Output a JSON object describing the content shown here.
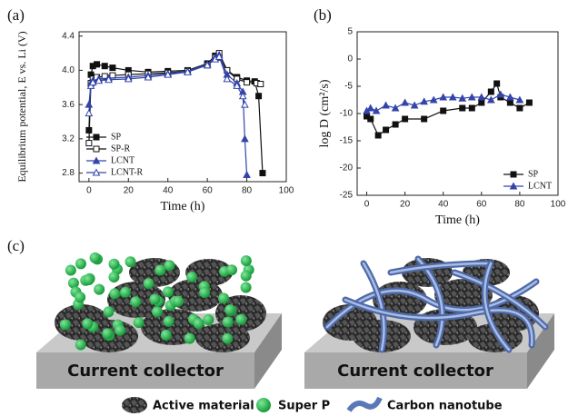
{
  "chart_data": [
    {
      "type": "line",
      "label": "(a)",
      "x_label": "Time (h)",
      "y_label": "Equilibrium potential, E vs. Li (V)",
      "xlim": [
        -5,
        100
      ],
      "xticks": [
        0,
        20,
        40,
        60,
        80,
        100
      ],
      "ylim": [
        2.7,
        4.45
      ],
      "yticks": [
        2.8,
        3.2,
        3.6,
        {
          "value": 4,
          "label": "4.0"
        },
        4.4
      ],
      "legend": "lower left",
      "series": [
        {
          "name": "SP",
          "color": "#111111",
          "marker": "square",
          "filled": true,
          "x": [
            0,
            1,
            2,
            4,
            8,
            12,
            20,
            30,
            40,
            50,
            60,
            64,
            66,
            70,
            75,
            80,
            84,
            86,
            88
          ],
          "values": [
            3.3,
            3.95,
            4.05,
            4.07,
            4.05,
            4.03,
            4.0,
            3.98,
            3.99,
            4.0,
            4.08,
            4.17,
            4.15,
            4.0,
            3.92,
            3.88,
            3.87,
            3.7,
            2.8
          ]
        },
        {
          "name": "SP-R",
          "color": "#111111",
          "marker": "square",
          "filled": false,
          "x": [
            0,
            1,
            2,
            4,
            8,
            12,
            20,
            30,
            40,
            50,
            60,
            64,
            66,
            70,
            75,
            80,
            85,
            87
          ],
          "values": [
            3.15,
            3.85,
            3.9,
            3.92,
            3.93,
            3.94,
            3.95,
            3.96,
            3.97,
            3.99,
            4.06,
            4.15,
            4.2,
            4.0,
            3.9,
            3.86,
            3.85,
            3.84
          ]
        },
        {
          "name": "LCNT",
          "color": "#3344aa",
          "marker": "triangle",
          "filled": true,
          "x": [
            0,
            1,
            2,
            5,
            10,
            20,
            30,
            40,
            50,
            60,
            64,
            66,
            70,
            75,
            78,
            79,
            80
          ],
          "values": [
            3.6,
            3.85,
            3.88,
            3.9,
            3.91,
            3.92,
            3.94,
            3.96,
            3.99,
            4.07,
            4.15,
            4.18,
            3.95,
            3.85,
            3.75,
            3.2,
            2.78
          ]
        },
        {
          "name": "LCNT-R",
          "color": "#3344aa",
          "marker": "triangle",
          "filled": false,
          "x": [
            0,
            1,
            2,
            5,
            10,
            20,
            30,
            40,
            50,
            60,
            64,
            66,
            70,
            75,
            78,
            79
          ],
          "values": [
            3.5,
            3.82,
            3.86,
            3.88,
            3.89,
            3.9,
            3.92,
            3.95,
            3.98,
            4.06,
            4.13,
            4.16,
            3.9,
            3.82,
            3.7,
            3.6
          ]
        }
      ]
    },
    {
      "type": "line",
      "label": "(b)",
      "x_label": "Time (h)",
      "y_label": "log D (cm²/s)",
      "xlim": [
        -5,
        100
      ],
      "xticks": [
        0,
        20,
        40,
        60,
        80,
        100
      ],
      "ylim": [
        -25,
        5
      ],
      "yticks": [
        -25,
        -20,
        -15,
        -10,
        -5,
        0,
        5
      ],
      "legend": "lower right",
      "series": [
        {
          "name": "SP",
          "color": "#111111",
          "marker": "square",
          "filled": true,
          "x": [
            0,
            2,
            6,
            10,
            15,
            20,
            30,
            40,
            50,
            55,
            60,
            65,
            68,
            70,
            75,
            80,
            85
          ],
          "values": [
            -10.5,
            -11,
            -14,
            -13,
            -12,
            -11,
            -11,
            -9.5,
            -9,
            -9,
            -8,
            -6,
            -4.5,
            -7,
            -8,
            -9,
            -8
          ]
        },
        {
          "name": "LCNT",
          "color": "#3344aa",
          "marker": "triangle",
          "filled": true,
          "x": [
            0,
            2,
            5,
            10,
            15,
            20,
            25,
            30,
            35,
            40,
            45,
            50,
            55,
            60,
            65,
            70,
            75,
            80
          ],
          "values": [
            -9.5,
            -9,
            -9.5,
            -8.5,
            -9,
            -8,
            -8.5,
            -7.8,
            -7.5,
            -7,
            -7,
            -7.2,
            -7,
            -7,
            -7.5,
            -6.5,
            -7,
            -7.5
          ]
        }
      ]
    }
  ],
  "panel_c": {
    "label": "(c)",
    "collector_left": "Current collector",
    "collector_right": "Current collector",
    "legend": [
      "Active material",
      "Super P",
      "Carbon nanotube"
    ]
  }
}
